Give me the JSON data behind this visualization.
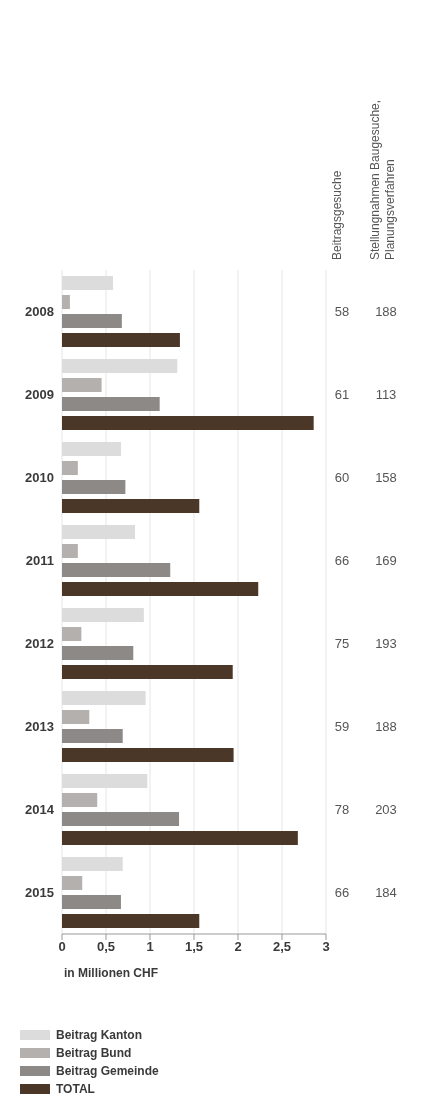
{
  "chart_data": {
    "type": "bar",
    "orientation": "horizontal",
    "xlabel": "in Millionen CHF",
    "categories": [
      "2008",
      "2009",
      "2010",
      "2011",
      "2012",
      "2013",
      "2014",
      "2015"
    ],
    "series": [
      {
        "name": "Beitrag Kanton",
        "color": "#dcdcdc",
        "values": [
          0.58,
          1.31,
          0.67,
          0.83,
          0.93,
          0.95,
          0.97,
          0.69
        ]
      },
      {
        "name": "Beitrag Bund",
        "color": "#b3b0ad",
        "values": [
          0.09,
          0.45,
          0.18,
          0.18,
          0.22,
          0.31,
          0.4,
          0.23
        ]
      },
      {
        "name": "Beitrag Gemeinde",
        "color": "#8c8987",
        "values": [
          0.68,
          1.11,
          0.72,
          1.23,
          0.81,
          0.69,
          1.33,
          0.67
        ]
      },
      {
        "name": "TOTAL",
        "color": "#4a3728",
        "values": [
          1.34,
          2.86,
          1.56,
          2.23,
          1.94,
          1.95,
          2.68,
          1.56
        ]
      }
    ],
    "xlim": [
      0,
      3
    ],
    "xticks": [
      0,
      {
        "value": 0.5,
        "label": "0,5"
      },
      1,
      {
        "value": 1.5,
        "label": "1,5"
      },
      2,
      {
        "value": 2.5,
        "label": "2,5"
      },
      3
    ],
    "grid": "x",
    "legend": "bottom left",
    "annotations": [
      "Beitragsgesuche",
      "Stellungnahmen Baugesuche, Planungsverfahren",
      "58",
      "188",
      "61",
      "113",
      "60",
      "158",
      "66",
      "169",
      "75",
      "193",
      "59",
      "188",
      "78",
      "203",
      "66",
      "184"
    ]
  }
}
